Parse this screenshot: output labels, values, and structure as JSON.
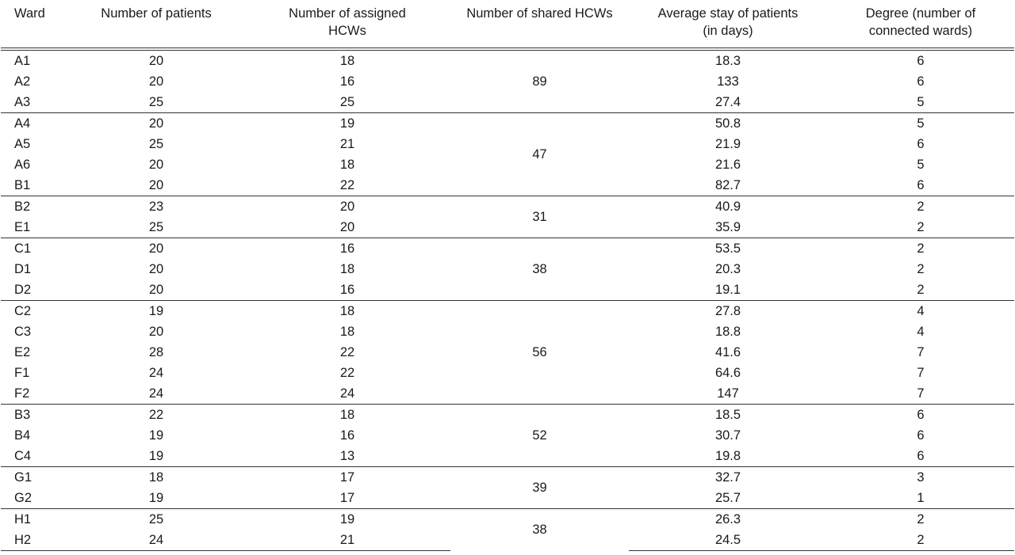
{
  "table": {
    "headers": {
      "ward": "Ward",
      "patients": "Number of patients",
      "assigned_line1": "Number of assigned",
      "assigned_line2": "HCWs",
      "shared": "Number of shared HCWs",
      "stay_line1": "Average stay of patients",
      "stay_line2": "(in days)",
      "degree_line1": "Degree (number of",
      "degree_line2": "connected wards)"
    },
    "groups": [
      {
        "shared": "89",
        "rows": [
          {
            "ward": "A1",
            "patients": "20",
            "assigned": "18",
            "stay": "18.3",
            "degree": "6"
          },
          {
            "ward": "A2",
            "patients": "20",
            "assigned": "16",
            "stay": "133",
            "degree": "6"
          },
          {
            "ward": "A3",
            "patients": "25",
            "assigned": "25",
            "stay": "27.4",
            "degree": "5"
          }
        ]
      },
      {
        "shared": "47",
        "rows": [
          {
            "ward": "A4",
            "patients": "20",
            "assigned": "19",
            "stay": "50.8",
            "degree": "5"
          },
          {
            "ward": "A5",
            "patients": "25",
            "assigned": "21",
            "stay": "21.9",
            "degree": "6"
          },
          {
            "ward": "A6",
            "patients": "20",
            "assigned": "18",
            "stay": "21.6",
            "degree": "5"
          },
          {
            "ward": "B1",
            "patients": "20",
            "assigned": "22",
            "stay": "82.7",
            "degree": "6"
          }
        ]
      },
      {
        "shared": "31",
        "rows": [
          {
            "ward": "B2",
            "patients": "23",
            "assigned": "20",
            "stay": "40.9",
            "degree": "2"
          },
          {
            "ward": "E1",
            "patients": "25",
            "assigned": "20",
            "stay": "35.9",
            "degree": "2"
          }
        ]
      },
      {
        "shared": "38",
        "rows": [
          {
            "ward": "C1",
            "patients": "20",
            "assigned": "16",
            "stay": "53.5",
            "degree": "2"
          },
          {
            "ward": "D1",
            "patients": "20",
            "assigned": "18",
            "stay": "20.3",
            "degree": "2"
          },
          {
            "ward": "D2",
            "patients": "20",
            "assigned": "16",
            "stay": "19.1",
            "degree": "2"
          }
        ]
      },
      {
        "shared": "56",
        "rows": [
          {
            "ward": "C2",
            "patients": "19",
            "assigned": "18",
            "stay": "27.8",
            "degree": "4"
          },
          {
            "ward": "C3",
            "patients": "20",
            "assigned": "18",
            "stay": "18.8",
            "degree": "4"
          },
          {
            "ward": "E2",
            "patients": "28",
            "assigned": "22",
            "stay": "41.6",
            "degree": "7"
          },
          {
            "ward": "F1",
            "patients": "24",
            "assigned": "22",
            "stay": "64.6",
            "degree": "7"
          },
          {
            "ward": "F2",
            "patients": "24",
            "assigned": "24",
            "stay": "147",
            "degree": "7"
          }
        ]
      },
      {
        "shared": "52",
        "rows": [
          {
            "ward": "B3",
            "patients": "22",
            "assigned": "18",
            "stay": "18.5",
            "degree": "6"
          },
          {
            "ward": "B4",
            "patients": "19",
            "assigned": "16",
            "stay": "30.7",
            "degree": "6"
          },
          {
            "ward": "C4",
            "patients": "19",
            "assigned": "13",
            "stay": "19.8",
            "degree": "6"
          }
        ]
      },
      {
        "shared": "39",
        "rows": [
          {
            "ward": "G1",
            "patients": "18",
            "assigned": "17",
            "stay": "32.7",
            "degree": "3"
          },
          {
            "ward": "G2",
            "patients": "19",
            "assigned": "17",
            "stay": "25.7",
            "degree": "1"
          }
        ]
      },
      {
        "shared": "38",
        "rows": [
          {
            "ward": "H1",
            "patients": "25",
            "assigned": "19",
            "stay": "26.3",
            "degree": "2"
          },
          {
            "ward": "H2",
            "patients": "24",
            "assigned": "21",
            "stay": "24.5",
            "degree": "2"
          }
        ]
      }
    ]
  }
}
